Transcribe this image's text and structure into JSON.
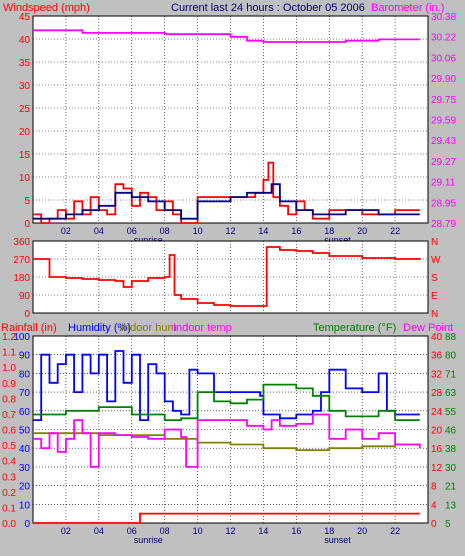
{
  "header": {
    "windspeed_label": "Windspeed (mph)",
    "title": "Current last 24 hours : October 05 2006",
    "barometer_label": "Barometer (in.)"
  },
  "bottom_header": {
    "rainfall_label": "Rainfall (in)",
    "humidity_label": "Humidity (%)",
    "indoor_hum_label": "Indoor hum",
    "indoor_temp_label": "Indoor temp",
    "temperature_label": "Temperature (°F)",
    "dewpoint_label": "Dew Point"
  },
  "colors": {
    "background": "#c0c0c0",
    "plot_bg": "#ffffff",
    "red": "#ff0000",
    "blue": "#0000ff",
    "magenta": "#ff00ff",
    "green": "#008000",
    "olive": "#808000",
    "navy": "#000080"
  },
  "chart_data": [
    {
      "type": "line",
      "x_ticks": [
        "02",
        "04",
        "06",
        "08",
        "10",
        "12",
        "14",
        "16",
        "18",
        "20",
        "22"
      ],
      "x_annotations": [
        "sunrise",
        "sunset"
      ],
      "left_axis": {
        "label": "Windspeed (mph)",
        "ticks": [
          "0",
          "5",
          "10",
          "15",
          "20",
          "25",
          "30",
          "35",
          "40",
          "45"
        ],
        "ylim": [
          0,
          48
        ]
      },
      "right_axis": {
        "label": "Barometer (in.)",
        "ticks": [
          "28.79",
          "28.95",
          "29.11",
          "29.27",
          "29.43",
          "29.59",
          "29.75",
          "29.90",
          "30.06",
          "30.22",
          "30.38"
        ],
        "ylim": [
          28.79,
          30.38
        ]
      },
      "grid": true,
      "series": [
        {
          "name": "Barometer (in.)",
          "axis": "right",
          "color": "#ff00ff",
          "x": [
            0,
            1,
            3,
            6,
            8,
            10,
            12,
            13,
            14,
            17,
            19,
            21,
            23.5
          ],
          "y": [
            30.27,
            30.27,
            30.25,
            30.25,
            30.24,
            30.24,
            30.22,
            30.19,
            30.18,
            30.18,
            30.19,
            30.2,
            30.2
          ]
        },
        {
          "name": "Windspeed (mph)",
          "axis": "left",
          "color": "#ff0000",
          "x": [
            0,
            0.5,
            1,
            1.5,
            2,
            2.5,
            3,
            3.5,
            4,
            4.5,
            5,
            5.5,
            6,
            6.5,
            7,
            7.5,
            8,
            8.5,
            9,
            10,
            11,
            12,
            13,
            13.5,
            14,
            14.3,
            14.6,
            15,
            15.5,
            16,
            16.5,
            17,
            18,
            19,
            20,
            21,
            22,
            23.5
          ],
          "y": [
            2,
            0,
            1,
            3,
            1,
            5,
            2,
            6,
            3,
            2,
            9,
            8,
            4,
            7,
            6,
            3,
            5,
            2,
            0,
            6,
            6,
            6,
            6,
            7,
            10,
            14,
            6,
            4,
            2,
            5,
            3,
            1,
            3,
            3,
            2,
            2,
            3,
            3
          ]
        },
        {
          "name": "Wind (navy)",
          "axis": "left",
          "color": "#000080",
          "x": [
            0,
            1,
            2,
            3,
            4,
            5,
            6,
            7,
            8,
            9,
            10,
            12,
            13,
            14,
            14.5,
            15,
            16,
            17,
            19,
            21,
            23.5
          ],
          "y": [
            1,
            1,
            2,
            3,
            4,
            7,
            6,
            5,
            3,
            1,
            5,
            6,
            7,
            7,
            9,
            5,
            3,
            2,
            3,
            2,
            2
          ]
        }
      ]
    },
    {
      "type": "line",
      "left_axis": {
        "ticks": [
          "0",
          "90",
          "180",
          "270",
          "360"
        ],
        "ylim": [
          0,
          360
        ]
      },
      "right_axis": {
        "ticks": [
          "N",
          "E",
          "S",
          "W",
          "N"
        ]
      },
      "grid": true,
      "series": [
        {
          "name": "Wind direction",
          "axis": "left",
          "color": "#ff0000",
          "x": [
            0,
            0.7,
            1,
            2,
            3,
            4,
            5,
            5.5,
            6,
            7,
            8,
            8.3,
            8.6,
            9,
            10,
            11,
            12,
            13,
            14,
            14.2,
            15,
            16,
            17,
            18,
            20,
            22,
            23.5
          ],
          "y": [
            270,
            270,
            180,
            175,
            170,
            165,
            160,
            130,
            160,
            175,
            180,
            290,
            90,
            70,
            50,
            40,
            35,
            35,
            35,
            330,
            315,
            310,
            300,
            285,
            275,
            270,
            275
          ]
        }
      ]
    },
    {
      "type": "line",
      "x_ticks": [
        "02",
        "04",
        "06",
        "08",
        "10",
        "12",
        "14",
        "16",
        "18",
        "20",
        "22"
      ],
      "x_annotations": [
        "sunrise",
        "sunset"
      ],
      "left_axis_rain": {
        "label": "Rainfall (in)",
        "ticks": [
          "0.0",
          "0.1",
          "0.2",
          "0.3",
          "0.4",
          "0.5",
          "0.6",
          "0.7",
          "0.8",
          "0.9",
          "1.0",
          "1.1",
          "1.2"
        ],
        "ylim": [
          0,
          1.2
        ]
      },
      "left_axis_humidity": {
        "label": "Humidity (%)",
        "ticks": [
          "0",
          "10",
          "20",
          "30",
          "40",
          "50",
          "60",
          "70",
          "80",
          "90",
          "100"
        ],
        "ylim": [
          0,
          100
        ]
      },
      "right_axis_temp_c": {
        "ticks": [
          "0",
          "4",
          "8",
          "12",
          "16",
          "20",
          "24",
          "28",
          "32",
          "36",
          "40"
        ]
      },
      "right_axis_temp_f": {
        "label": "Temperature (°F)",
        "ticks": [
          "5",
          "13",
          "21",
          "30",
          "38",
          "46",
          "55",
          "63",
          "71",
          "80",
          "88"
        ]
      },
      "grid": true,
      "series": [
        {
          "name": "Rainfall (in)",
          "axis": "rain",
          "color": "#ff0000",
          "x": [
            0,
            6,
            6.5,
            23.5
          ],
          "y": [
            0.0,
            0.0,
            0.06,
            0.06
          ]
        },
        {
          "name": "Humidity (%)",
          "axis": "humidity",
          "color": "#0000ff",
          "x": [
            0,
            0.5,
            1,
            1.5,
            2,
            2.5,
            3,
            3.5,
            4,
            4.5,
            5,
            5.5,
            6,
            6.5,
            7,
            7.5,
            8,
            8.5,
            9,
            9.5,
            10,
            11,
            12,
            13,
            13.8,
            14,
            15,
            16,
            17,
            17.5,
            18,
            19,
            20,
            21,
            21.5,
            22,
            23.5
          ],
          "y": [
            55,
            90,
            75,
            85,
            90,
            70,
            90,
            80,
            90,
            65,
            92,
            75,
            90,
            55,
            85,
            80,
            65,
            60,
            58,
            82,
            80,
            70,
            70,
            70,
            68,
            58,
            56,
            58,
            60,
            70,
            82,
            72,
            70,
            80,
            60,
            58,
            58
          ]
        },
        {
          "name": "Indoor hum",
          "axis": "humidity",
          "color": "#808000",
          "x": [
            0,
            2,
            4,
            6,
            8,
            10,
            12,
            14,
            16,
            18,
            20,
            22,
            23.5
          ],
          "y": [
            48,
            48,
            47,
            47,
            45,
            43,
            42,
            40,
            39,
            40,
            41,
            42,
            42
          ]
        },
        {
          "name": "Indoor temp",
          "axis": "humidity",
          "color": "#ff00ff",
          "x": [
            0,
            0.5,
            1,
            1.5,
            2,
            2.5,
            3,
            3.5,
            4,
            5,
            6,
            7,
            8,
            9,
            9.3,
            10,
            12,
            13,
            14,
            14.5,
            15,
            16,
            17,
            18,
            19,
            20,
            21,
            22,
            23.5
          ],
          "y": [
            45,
            40,
            48,
            38,
            45,
            55,
            48,
            30,
            48,
            47,
            46,
            45,
            50,
            46,
            30,
            55,
            55,
            52,
            50,
            55,
            52,
            53,
            58,
            45,
            50,
            45,
            48,
            42,
            40
          ]
        },
        {
          "name": "Temperature (°F)",
          "axis": "humidity",
          "color": "#008000",
          "x": [
            0,
            2,
            4,
            6,
            8,
            9,
            10,
            11,
            12,
            13,
            14,
            15,
            16,
            17,
            18,
            19,
            20,
            21,
            22,
            23.5
          ],
          "y": [
            58,
            60,
            62,
            58,
            55,
            56,
            70,
            65,
            64,
            66,
            74,
            74,
            72,
            68,
            60,
            57,
            57,
            60,
            55,
            55
          ]
        }
      ]
    }
  ]
}
